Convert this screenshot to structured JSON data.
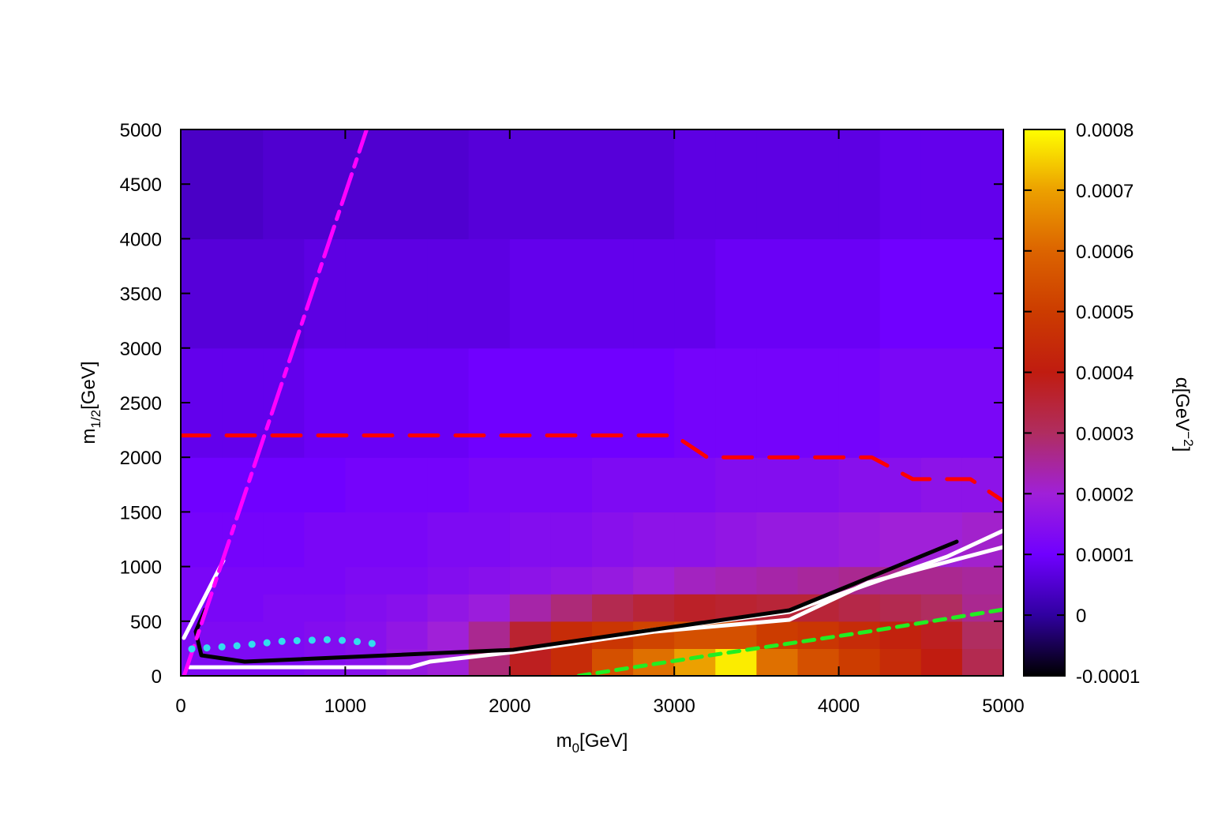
{
  "chart_data": {
    "type": "heatmap",
    "xlabel": {
      "main": "m",
      "sub": "0",
      "rest": "[GeV]"
    },
    "ylabel": {
      "main": "m",
      "sub": "1/2",
      "rest": "[GeV]"
    },
    "colorbar_label": {
      "main": "α[GeV",
      "sup": "−2",
      "rest": "]"
    },
    "xlim": [
      0,
      5000
    ],
    "ylim": [
      0,
      5000
    ],
    "xticks": [
      0,
      1000,
      2000,
      3000,
      4000,
      5000
    ],
    "yticks": [
      0,
      500,
      1000,
      1500,
      2000,
      2500,
      3000,
      3500,
      4000,
      4500,
      5000
    ],
    "clim": [
      -0.0001,
      0.0008
    ],
    "cticks": [
      -0.0001,
      0,
      0.0001,
      0.0002,
      0.0003,
      0.0004,
      0.0005,
      0.0006,
      0.0007,
      0.0008
    ],
    "colormap": [
      [
        -0.0001,
        "#000000"
      ],
      [
        0,
        "#3000a0"
      ],
      [
        0.0001,
        "#7000ff"
      ],
      [
        0.0002,
        "#a020d8"
      ],
      [
        0.0003,
        "#b02d60"
      ],
      [
        0.0004,
        "#c01c10"
      ],
      [
        0.0005,
        "#cc3c00"
      ],
      [
        0.0006,
        "#dc6400"
      ],
      [
        0.0007,
        "#eca000"
      ],
      [
        0.0008,
        "#ffff00"
      ]
    ],
    "x_edges": [
      0,
      250,
      500,
      750,
      1000,
      1250,
      1500,
      1750,
      2000,
      2250,
      2500,
      2750,
      3000,
      3250,
      3500,
      3750,
      4000,
      4250,
      4500,
      4750,
      5000
    ],
    "y_edges": [
      0,
      250,
      500,
      750,
      1000,
      1500,
      2000,
      3000,
      4000,
      5000
    ],
    "z": [
      [
        0.00013,
        0.00013,
        0.00013,
        0.00014,
        0.00015,
        0.00018,
        0.0002,
        0.00028,
        0.00038,
        0.00045,
        0.00055,
        0.00062,
        0.0007,
        0.00078,
        0.00062,
        0.00055,
        0.0005,
        0.00045,
        0.0004,
        0.00032
      ],
      [
        0.00013,
        0.00013,
        0.00013,
        0.00014,
        0.00015,
        0.00017,
        0.0002,
        0.00026,
        0.00036,
        0.00045,
        0.00048,
        0.00052,
        0.00055,
        0.00055,
        0.0005,
        0.00048,
        0.00045,
        0.00042,
        0.00038,
        0.0003
      ],
      [
        0.00012,
        0.00012,
        0.00013,
        0.00013,
        0.00014,
        0.00015,
        0.00017,
        0.00019,
        0.00024,
        0.00028,
        0.00032,
        0.00035,
        0.00037,
        0.00036,
        0.00035,
        0.00035,
        0.00033,
        0.00032,
        0.0003,
        0.00026
      ],
      [
        0.00012,
        0.00012,
        0.00012,
        0.00012,
        0.00013,
        0.00013,
        0.00014,
        0.00015,
        0.00016,
        0.00017,
        0.00018,
        0.0002,
        0.00022,
        0.00023,
        0.00024,
        0.00025,
        0.00026,
        0.00026,
        0.00026,
        0.00025
      ],
      [
        0.00011,
        0.00011,
        0.00011,
        0.00012,
        0.00012,
        0.00012,
        0.00013,
        0.00013,
        0.00014,
        0.00014,
        0.00015,
        0.00016,
        0.00016,
        0.00017,
        0.00018,
        0.00018,
        0.00019,
        0.0002,
        0.0002,
        0.00021
      ],
      [
        0.0001,
        0.0001,
        0.0001,
        0.0001,
        0.00011,
        0.00011,
        0.00011,
        0.00012,
        0.00012,
        0.00012,
        0.00013,
        0.00013,
        0.00013,
        0.00014,
        0.00014,
        0.00014,
        0.00015,
        0.00015,
        0.00016,
        0.00016
      ],
      [
        8e-05,
        8e-05,
        8e-05,
        9e-05,
        9e-05,
        9e-05,
        9e-05,
        0.0001,
        0.0001,
        0.0001,
        0.0001,
        0.0001,
        0.00011,
        0.00011,
        0.00011,
        0.00011,
        0.00011,
        0.00012,
        0.00012,
        0.00012
      ],
      [
        6e-05,
        6e-05,
        6e-05,
        7e-05,
        7e-05,
        7e-05,
        7e-05,
        7e-05,
        8e-05,
        8e-05,
        8e-05,
        8e-05,
        8e-05,
        9e-05,
        9e-05,
        9e-05,
        9e-05,
        0.0001,
        0.0001,
        0.0001
      ],
      [
        4e-05,
        4e-05,
        5e-05,
        5e-05,
        5e-05,
        5e-05,
        5e-05,
        6e-05,
        6e-05,
        6e-05,
        6e-05,
        6e-05,
        7e-05,
        7e-05,
        7e-05,
        7e-05,
        7e-05,
        8e-05,
        8e-05,
        8e-05
      ]
    ],
    "lines": [
      {
        "color": "#ffffff",
        "dash": "none",
        "x": [
          19,
          259
        ],
        "y": [
          347,
          1055
        ]
      },
      {
        "color": "#ffffff",
        "dash": "none",
        "x": [
          53,
          1396,
          1516,
          2020,
          2884,
          3700,
          4180,
          5000
        ],
        "y": [
          79,
          79,
          130,
          217,
          405,
          513,
          853,
          1178
        ]
      },
      {
        "color": "#ffffff",
        "dash": "none",
        "x": [
          2788,
          3700,
          4659,
          5000
        ],
        "y": [
          405,
          585,
          1091,
          1329
        ]
      },
      {
        "color": "#000000",
        "dash": "none",
        "x": [
          149,
          91,
          125,
          389,
          2020,
          3700,
          4717
        ],
        "y": [
          607,
          405,
          188,
          130,
          238,
          600,
          1228
        ]
      },
      {
        "color": "#ff00ff",
        "dash": "40 10 10 10",
        "x": [
          20,
          1130
        ],
        "y": [
          0,
          5000
        ]
      },
      {
        "color": "#ff0000",
        "dash": "36 22",
        "x": [
          0,
          3000,
          3200,
          4200,
          4450,
          4800,
          5000
        ],
        "y": [
          2200,
          2200,
          2000,
          2000,
          1800,
          1800,
          1600
        ]
      },
      {
        "color": "#22ee22",
        "dash": "14 10",
        "x": [
          2419,
          3220,
          4180,
          5000
        ],
        "y": [
          0,
          188,
          405,
          607
        ]
      },
      {
        "color": "#33ddee",
        "dash": "0.1 19",
        "x": [
          67,
          341,
          629,
          917,
          1156,
          1228
        ],
        "y": [
          246,
          275,
          318,
          332,
          303,
          231
        ]
      }
    ]
  }
}
